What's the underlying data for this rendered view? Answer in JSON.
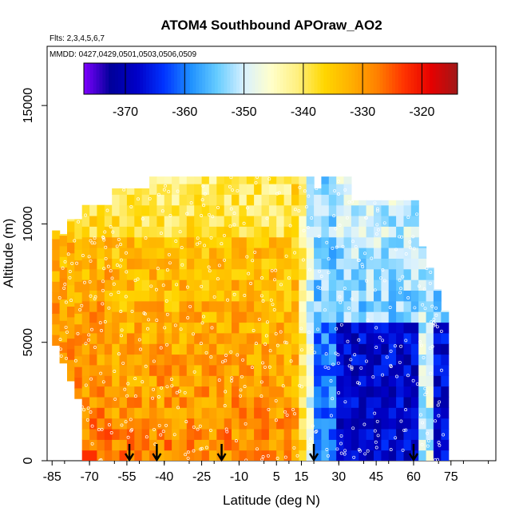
{
  "chart_data": {
    "type": "heatmap",
    "title": "ATOM4 Southbound APOraw_AO2",
    "flights_label": "Flts: 2,3,4,5,6,7",
    "dates_label": "MMDD: 0427,0429,0501,0503,0506,0509",
    "xlabel": "Latitude (deg N)",
    "ylabel": "Altitude (m)",
    "xlim": [
      -87,
      93
    ],
    "ylim": [
      0,
      17500
    ],
    "x_ticks": [
      -85,
      -70,
      -55,
      -40,
      -25,
      -10,
      5,
      15,
      30,
      45,
      60,
      75
    ],
    "x_tick_labels": [
      "-85",
      "-70",
      "-55",
      "-40",
      "-25",
      "-10",
      "5",
      "15",
      "30",
      "45",
      "60",
      "75"
    ],
    "y_ticks": [
      0,
      5000,
      10000,
      15000
    ],
    "y_tick_labels": [
      "0",
      "5000",
      "10000",
      "15000"
    ],
    "colorbar": {
      "range": [
        -377,
        -314
      ],
      "ticks": [
        -370,
        -360,
        -350,
        -340,
        -330,
        -320
      ],
      "tick_labels": [
        "-370",
        "-360",
        "-350",
        "-340",
        "-330",
        "-320"
      ],
      "colors": [
        "#7f00ff",
        "#00009a",
        "#0000c8",
        "#0033ff",
        "#1e90ff",
        "#66ccff",
        "#d8f0ff",
        "#ffffcc",
        "#fff080",
        "#ffd700",
        "#ffb000",
        "#ff8000",
        "#ff3300",
        "#e60000",
        "#a01818"
      ]
    },
    "grid": false,
    "legend": "none",
    "arrow_latitudes": [
      -54,
      -43,
      -17,
      20,
      60
    ],
    "field_summary": [
      {
        "lat_range": [
          -85,
          -60
        ],
        "alt_range": [
          0,
          10000
        ],
        "value_approx": -328
      },
      {
        "lat_range": [
          -60,
          10
        ],
        "alt_range": [
          0,
          8000
        ],
        "value_approx": -328
      },
      {
        "lat_range": [
          -70,
          10
        ],
        "alt_range": [
          8000,
          12000
        ],
        "value_approx": -337
      },
      {
        "lat_range": [
          15,
          30
        ],
        "alt_range": [
          0,
          12000
        ],
        "value_approx": -350
      },
      {
        "lat_range": [
          30,
          72
        ],
        "alt_range": [
          0,
          6000
        ],
        "value_approx": -368
      },
      {
        "lat_range": [
          30,
          72
        ],
        "alt_range": [
          6000,
          11000
        ],
        "value_approx": -352
      }
    ]
  }
}
